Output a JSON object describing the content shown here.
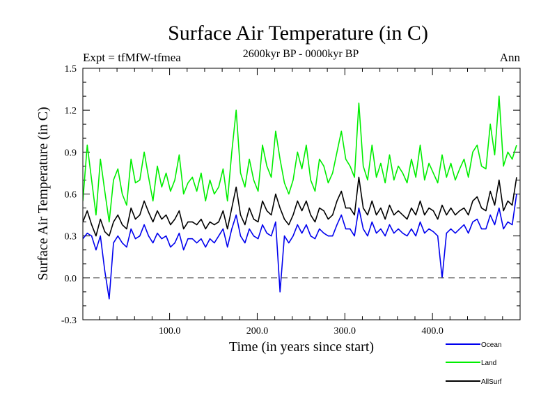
{
  "chart_data": {
    "type": "line",
    "title": "Surface Air Temperature (in C)",
    "subtitle": "2600kyr BP - 0000kyr BP",
    "expt_label": "Expt = tfMfW-tfmea",
    "season_label": "Ann",
    "xlabel": "Time (in years since start)",
    "ylabel": "Surface Air Temperature (in C)",
    "xlim": [
      1,
      500
    ],
    "ylim": [
      -0.3,
      1.5
    ],
    "xticks": [
      100,
      200,
      300,
      400
    ],
    "xtick_labels": [
      "100.0",
      "200.0",
      "300.0",
      "400.0"
    ],
    "yticks": [
      -0.3,
      0.0,
      0.3,
      0.6,
      0.9,
      1.2,
      1.5
    ],
    "ytick_labels": [
      "-0.3",
      "0.0",
      "0.3",
      "0.6",
      "0.9",
      "1.2",
      "1.5"
    ],
    "reference_line": {
      "y": 0.0,
      "style": "dashed"
    },
    "series_x_step": 5,
    "series": [
      {
        "name": "Land",
        "color": "#00ee00",
        "values": [
          0.55,
          0.95,
          0.7,
          0.45,
          0.85,
          0.62,
          0.4,
          0.7,
          0.78,
          0.6,
          0.52,
          0.85,
          0.68,
          0.7,
          0.9,
          0.72,
          0.55,
          0.8,
          0.65,
          0.75,
          0.62,
          0.7,
          0.88,
          0.6,
          0.68,
          0.72,
          0.62,
          0.75,
          0.55,
          0.7,
          0.6,
          0.65,
          0.78,
          0.55,
          0.9,
          1.2,
          0.75,
          0.65,
          0.85,
          0.7,
          0.62,
          0.95,
          0.8,
          0.72,
          1.05,
          0.85,
          0.68,
          0.6,
          0.7,
          0.9,
          0.78,
          0.95,
          0.7,
          0.62,
          0.85,
          0.8,
          0.68,
          0.75,
          0.9,
          1.05,
          0.85,
          0.8,
          0.72,
          1.25,
          0.8,
          0.7,
          0.95,
          0.72,
          0.82,
          0.68,
          0.88,
          0.7,
          0.8,
          0.75,
          0.68,
          0.85,
          0.72,
          0.95,
          0.7,
          0.82,
          0.75,
          0.68,
          0.88,
          0.72,
          0.82,
          0.7,
          0.78,
          0.85,
          0.72,
          0.9,
          0.95,
          0.8,
          0.78,
          1.1,
          0.88,
          1.3,
          0.8,
          0.9,
          0.85,
          0.95
        ]
      },
      {
        "name": "AllSurf",
        "color": "#000000",
        "values": [
          0.4,
          0.48,
          0.38,
          0.3,
          0.42,
          0.33,
          0.3,
          0.4,
          0.45,
          0.38,
          0.35,
          0.5,
          0.42,
          0.45,
          0.55,
          0.47,
          0.4,
          0.48,
          0.42,
          0.45,
          0.38,
          0.42,
          0.48,
          0.35,
          0.4,
          0.4,
          0.38,
          0.42,
          0.35,
          0.4,
          0.38,
          0.4,
          0.48,
          0.35,
          0.5,
          0.65,
          0.45,
          0.38,
          0.5,
          0.42,
          0.4,
          0.55,
          0.48,
          0.45,
          0.6,
          0.5,
          0.42,
          0.38,
          0.45,
          0.55,
          0.48,
          0.55,
          0.45,
          0.4,
          0.5,
          0.48,
          0.42,
          0.45,
          0.55,
          0.62,
          0.5,
          0.5,
          0.45,
          0.72,
          0.5,
          0.45,
          0.55,
          0.45,
          0.5,
          0.42,
          0.52,
          0.45,
          0.48,
          0.45,
          0.42,
          0.5,
          0.45,
          0.55,
          0.45,
          0.5,
          0.48,
          0.42,
          0.52,
          0.45,
          0.5,
          0.45,
          0.48,
          0.5,
          0.45,
          0.55,
          0.58,
          0.5,
          0.48,
          0.62,
          0.52,
          0.7,
          0.48,
          0.55,
          0.52,
          0.72
        ]
      },
      {
        "name": "Ocean",
        "color": "#0000ee",
        "values": [
          0.28,
          0.32,
          0.3,
          0.2,
          0.3,
          0.05,
          -0.15,
          0.25,
          0.3,
          0.25,
          0.22,
          0.35,
          0.28,
          0.3,
          0.38,
          0.3,
          0.25,
          0.32,
          0.28,
          0.3,
          0.22,
          0.25,
          0.32,
          0.2,
          0.28,
          0.28,
          0.25,
          0.28,
          0.22,
          0.28,
          0.25,
          0.3,
          0.35,
          0.22,
          0.35,
          0.45,
          0.3,
          0.25,
          0.35,
          0.3,
          0.28,
          0.38,
          0.32,
          0.3,
          0.4,
          -0.1,
          0.3,
          0.25,
          0.3,
          0.38,
          0.32,
          0.38,
          0.3,
          0.28,
          0.35,
          0.32,
          0.3,
          0.3,
          0.38,
          0.45,
          0.35,
          0.35,
          0.3,
          0.5,
          0.35,
          0.3,
          0.4,
          0.32,
          0.35,
          0.3,
          0.38,
          0.32,
          0.35,
          0.32,
          0.3,
          0.35,
          0.3,
          0.4,
          0.32,
          0.35,
          0.33,
          0.3,
          0.0,
          0.32,
          0.35,
          0.32,
          0.35,
          0.38,
          0.32,
          0.4,
          0.42,
          0.35,
          0.35,
          0.45,
          0.38,
          0.5,
          0.35,
          0.4,
          0.38,
          0.6
        ]
      }
    ],
    "legend": {
      "placement": "bottom-right",
      "entries": [
        {
          "label": "Ocean",
          "color": "#0000ee"
        },
        {
          "label": "Land",
          "color": "#00ee00"
        },
        {
          "label": "AllSurf",
          "color": "#000000"
        }
      ]
    }
  }
}
